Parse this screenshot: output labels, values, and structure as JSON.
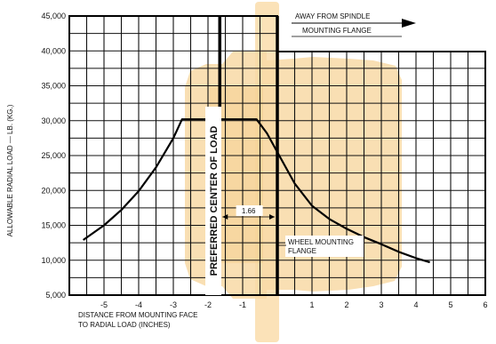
{
  "chart_data": {
    "type": "line",
    "title": "",
    "xlabel": "DISTANCE FROM MOUNTING FACE\nTO RADIAL LOAD (INCHES)",
    "ylabel": "ALLOWABLE RADIAL LOAD — LB. (KG.)",
    "xlim": [
      -6,
      6
    ],
    "ylim": [
      5000,
      45000
    ],
    "x_ticks": [
      -5,
      -4,
      -3,
      -2,
      -1,
      1,
      2,
      3,
      4,
      5,
      6
    ],
    "y_ticks": [
      "5,000",
      "10,000",
      "15,000",
      "20,000",
      "25,000",
      "30,000",
      "35,000",
      "40,000",
      "45,000"
    ],
    "y_tick_values": [
      5000,
      10000,
      15000,
      20000,
      25000,
      30000,
      35000,
      40000,
      45000
    ],
    "grid": true,
    "series": [
      {
        "x": [
          -5.6,
          -5.0,
          -4.5,
          -4.0,
          -3.5,
          -3.0,
          -2.75,
          -2.0,
          -1.5,
          -1.0,
          -0.6,
          -0.3,
          0.0,
          0.5,
          1.0,
          1.5,
          2.0,
          2.5,
          3.0,
          3.5,
          4.0,
          4.4
        ],
        "y": [
          12900,
          15000,
          17200,
          19900,
          23300,
          27500,
          30200,
          30200,
          30200,
          30200,
          30200,
          28200,
          25500,
          21000,
          17800,
          15900,
          14500,
          13300,
          12300,
          11200,
          10300,
          9700
        ]
      }
    ],
    "annotations": [
      {
        "text": "PREFERRED CENTER OF LOAD",
        "x": -1.66
      },
      {
        "text": "WHEEL MOUNTING\nFLANGE",
        "x": 0
      },
      {
        "text": "1.66",
        "from": -1.66,
        "to": 0
      },
      {
        "text": "AWAY FROM SPINDLE\nMOUNTING FLANGE"
      }
    ]
  },
  "colors": {
    "grid": "#111111",
    "line": "#000000",
    "wheel_silhouette": "#f8d9a6",
    "wheel_silhouette_light": "#fbe6c4"
  }
}
